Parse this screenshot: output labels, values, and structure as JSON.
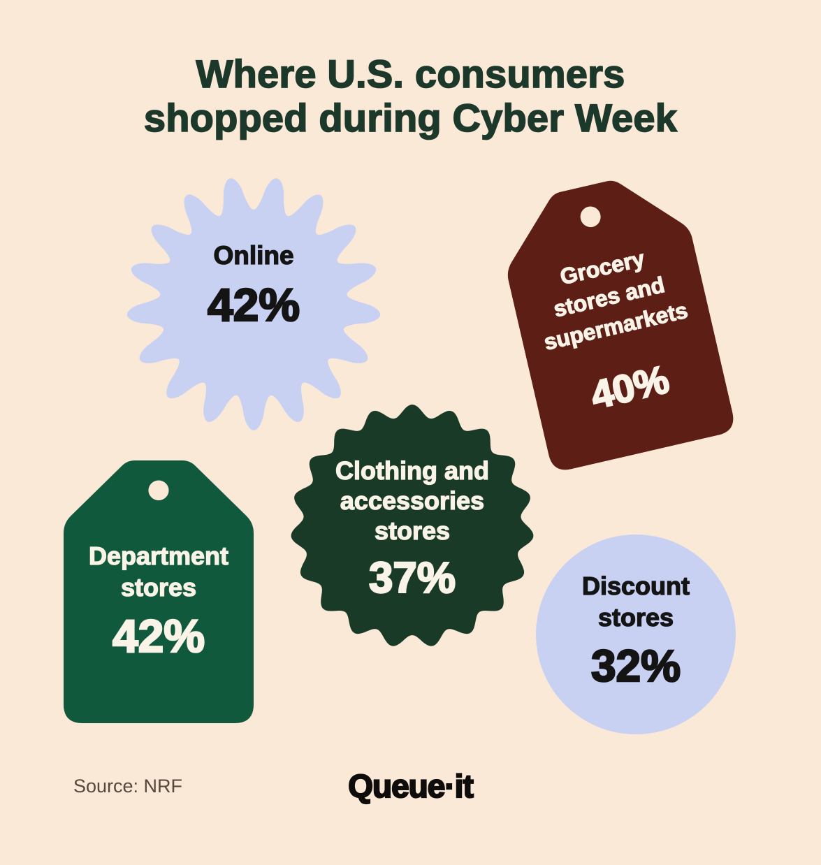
{
  "title_lines": [
    "Where U.S. consumers",
    "shopped during Cyber Week"
  ],
  "chart_data": {
    "type": "bar",
    "variant": "infographic-pictogram-badges",
    "title": "Where U.S. consumers shopped during Cyber Week",
    "categories": [
      "Online",
      "Grocery stores and supermarkets",
      "Clothing and accessories stores",
      "Department stores",
      "Discount stores"
    ],
    "values": [
      42,
      40,
      37,
      42,
      32
    ],
    "unit": "%",
    "value_labels": [
      "42%",
      "40%",
      "37%",
      "42%",
      "32%"
    ],
    "source": "NRF",
    "legend": false,
    "grid": false
  },
  "badges": [
    {
      "id": "online",
      "shape": "gear",
      "label_lines": [
        "Online"
      ],
      "value": "42%",
      "fill": "#c9d1f3",
      "text_color": "#141414"
    },
    {
      "id": "grocery",
      "shape": "tag",
      "label_lines": [
        "Grocery",
        "stores and",
        "supermarkets"
      ],
      "value": "40%",
      "fill": "#5d1e16",
      "text_color": "#faf3e7",
      "rotation_deg": -13
    },
    {
      "id": "clothing",
      "shape": "scallop",
      "label_lines": [
        "Clothing and",
        "accessories",
        "stores"
      ],
      "value": "37%",
      "fill": "#1a3a28",
      "text_color": "#faf3e7"
    },
    {
      "id": "department",
      "shape": "tag",
      "label_lines": [
        "Department",
        "stores"
      ],
      "value": "42%",
      "fill": "#10593c",
      "text_color": "#faf3e7"
    },
    {
      "id": "discount",
      "shape": "circle",
      "label_lines": [
        "Discount",
        "stores"
      ],
      "value": "32%",
      "fill": "#c9d1f3",
      "text_color": "#141414"
    }
  ],
  "footer": {
    "source_label": "Source: NRF",
    "logo_text": "Queue·it"
  },
  "colors": {
    "background": "#fbe9d8",
    "title": "#1c382b",
    "lavender": "#c9d1f3",
    "maroon": "#5d1e16",
    "dark_green": "#1a3a28",
    "green": "#10593c",
    "badge_text_light": "#faf3e7",
    "badge_text_dark": "#141414"
  }
}
